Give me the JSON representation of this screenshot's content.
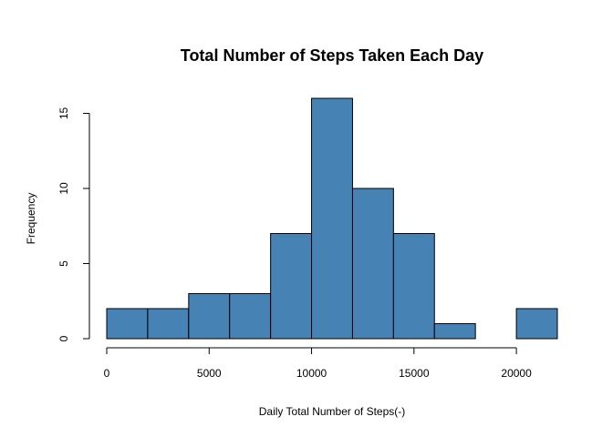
{
  "chart_data": {
    "type": "bar",
    "title": "Total Number of Steps Taken Each Day",
    "xlabel": "Daily Total Number of Steps(-)",
    "ylabel": "Frequency",
    "bin_edges": [
      0,
      2000,
      4000,
      6000,
      8000,
      10000,
      12000,
      14000,
      16000,
      18000,
      20000,
      22000
    ],
    "values": [
      2,
      2,
      3,
      3,
      7,
      16,
      10,
      7,
      1,
      0,
      2
    ],
    "xlim": [
      0,
      22000
    ],
    "ylim": [
      0,
      16
    ],
    "x_ticks": [
      0,
      5000,
      10000,
      15000,
      20000
    ],
    "y_ticks": [
      0,
      5,
      10,
      15
    ],
    "bar_color": "#4682B4",
    "grid": false,
    "legend": "none"
  }
}
